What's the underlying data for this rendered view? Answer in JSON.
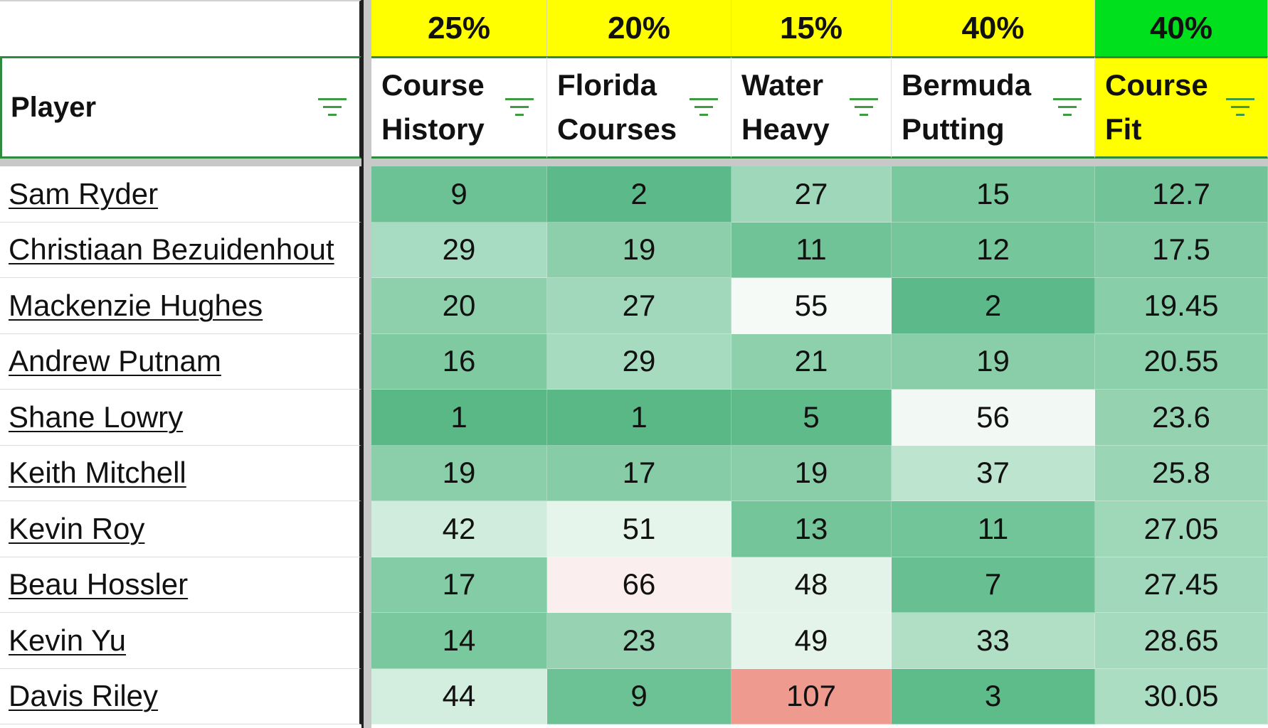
{
  "weights": [
    {
      "label": "25%",
      "color": "#ffff00"
    },
    {
      "label": "20%",
      "color": "#ffff00"
    },
    {
      "label": "15%",
      "color": "#ffff00"
    },
    {
      "label": "40%",
      "color": "#ffff00"
    },
    {
      "label": "40%",
      "color": "#00e01c"
    }
  ],
  "headers": {
    "player": "Player",
    "columns": [
      {
        "label": "Course\nHistory",
        "bg": "#ffffff"
      },
      {
        "label": "Florida\nCourses",
        "bg": "#ffffff"
      },
      {
        "label": "Water\nHeavy",
        "bg": "#ffffff"
      },
      {
        "label": "Bermuda\nPutting",
        "bg": "#ffffff"
      },
      {
        "label": "Course\nFit",
        "bg": "#ffff00"
      }
    ]
  },
  "rows": [
    {
      "player": "Sam Ryder",
      "values": [
        "9",
        "2",
        "27",
        "15",
        "12.7"
      ],
      "colors": [
        "#6cc195",
        "#5cb989",
        "#9ed7b9",
        "#7ac89e",
        "#72c498"
      ]
    },
    {
      "player": "Christiaan Bezuidenhout",
      "values": [
        "29",
        "19",
        "11",
        "12",
        "17.5"
      ],
      "colors": [
        "#a8dcc2",
        "#8dcfaa",
        "#70c297",
        "#76c69c",
        "#82cba4"
      ]
    },
    {
      "player": "Mackenzie Hughes",
      "values": [
        "20",
        "27",
        "55",
        "2",
        "19.45"
      ],
      "colors": [
        "#8ed0ac",
        "#a1d8bb",
        "#f5faf7",
        "#5cb989",
        "#88cea8"
      ]
    },
    {
      "player": "Andrew Putnam",
      "values": [
        "16",
        "29",
        "21",
        "19",
        "20.55"
      ],
      "colors": [
        "#80caa2",
        "#a7dbc0",
        "#8ed0ac",
        "#89cea9",
        "#8ccfab"
      ]
    },
    {
      "player": "Shane Lowry",
      "values": [
        "1",
        "1",
        "5",
        "56",
        "23.6"
      ],
      "colors": [
        "#5ab887",
        "#5ab887",
        "#60bb8b",
        "#f2f9f5",
        "#94d2b0"
      ]
    },
    {
      "player": "Keith Mitchell",
      "values": [
        "19",
        "17",
        "19",
        "37",
        "25.8"
      ],
      "colors": [
        "#8bcfaa",
        "#86cda7",
        "#89cea9",
        "#bce4ce",
        "#9ad5b5"
      ]
    },
    {
      "player": "Kevin Roy",
      "values": [
        "42",
        "51",
        "13",
        "11",
        "27.05"
      ],
      "colors": [
        "#d0ecdc",
        "#e6f5ec",
        "#74c59a",
        "#72c499",
        "#9fd7b9"
      ]
    },
    {
      "player": "Beau Hossler",
      "values": [
        "17",
        "66",
        "48",
        "7",
        "27.45"
      ],
      "colors": [
        "#84cca5",
        "#fbeeee",
        "#e3f3ea",
        "#68bf92",
        "#a1d8bb"
      ]
    },
    {
      "player": "Kevin Yu",
      "values": [
        "14",
        "23",
        "49",
        "33",
        "28.65"
      ],
      "colors": [
        "#7ac89e",
        "#97d3b3",
        "#e5f4eb",
        "#b0dfc6",
        "#a5dabe"
      ]
    },
    {
      "player": "Davis Riley",
      "values": [
        "44",
        "9",
        "107",
        "3",
        "30.05"
      ],
      "colors": [
        "#d3eddf",
        "#6cc195",
        "#ee9a8e",
        "#5ebb8a",
        "#aaddc2"
      ]
    }
  ],
  "icons": {
    "filter": "filter-icon"
  }
}
